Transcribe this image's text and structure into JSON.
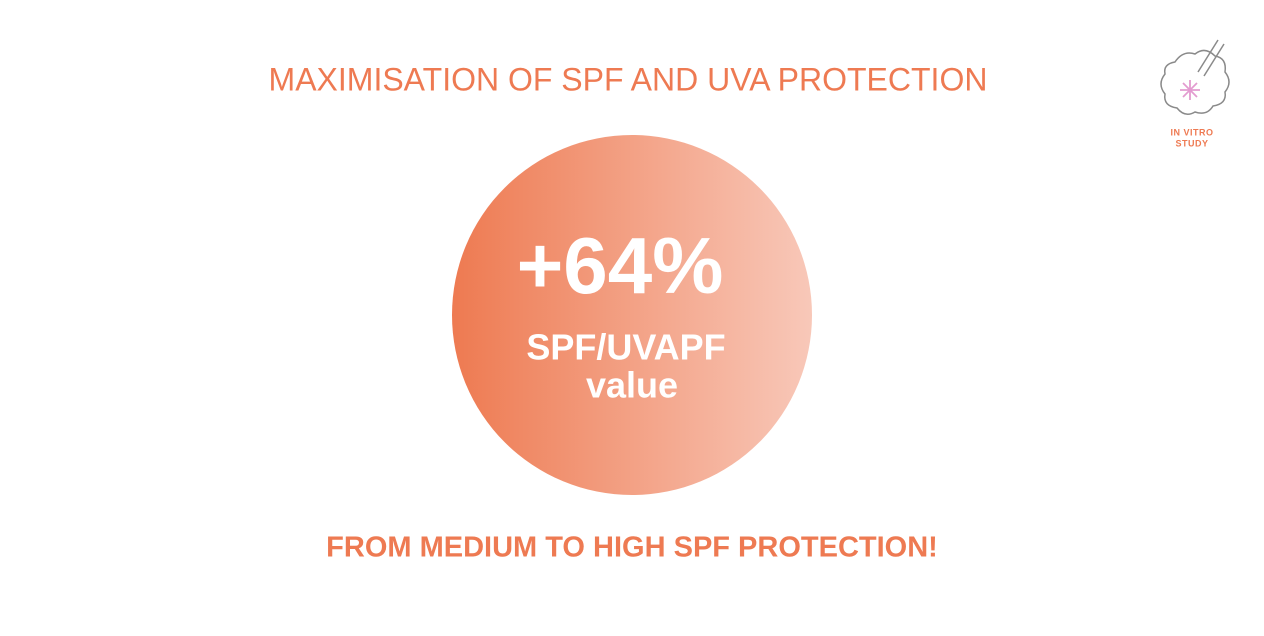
{
  "header": {
    "title": "MAXIMISATION OF SPF AND UVA PROTECTION"
  },
  "badge": {
    "lines": [
      "IN VITRO",
      "STUDY"
    ]
  },
  "highlight": {
    "figure": "+64%",
    "lines": [
      "SPF/UVAPF",
      "value"
    ]
  },
  "footer": {
    "text": "FROM MEDIUM TO HIGH SPF PROTECTION!"
  }
}
